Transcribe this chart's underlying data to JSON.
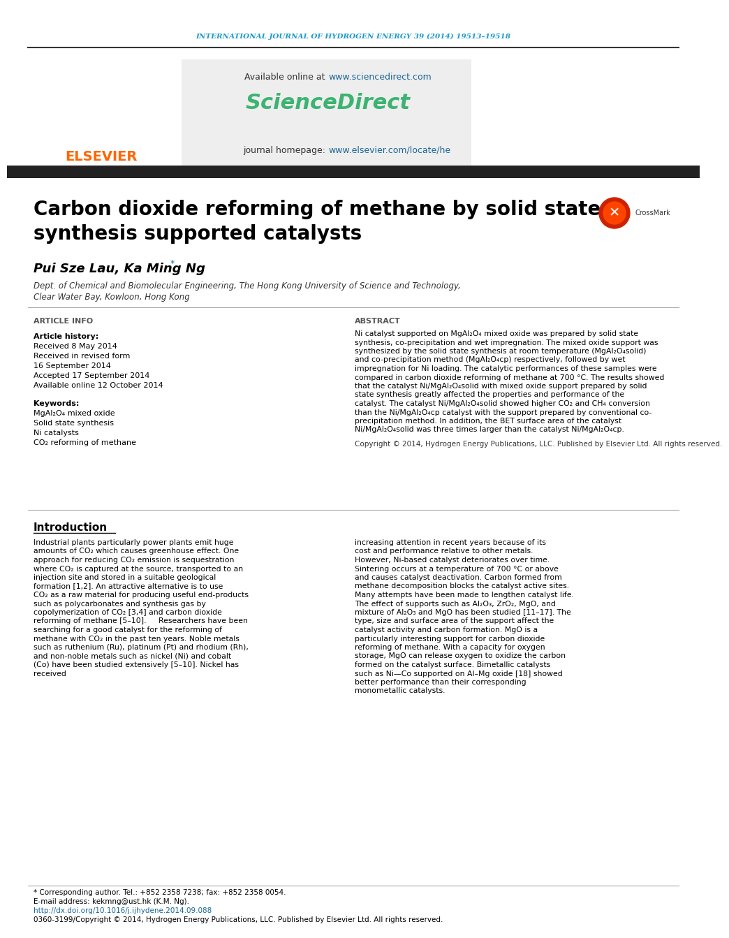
{
  "journal_header": "INTERNATIONAL JOURNAL OF HYDROGEN ENERGY 39 (2014) 19513–19518",
  "header_color": "#1a9ac9",
  "available_online": "Available online at ",
  "sciencedirect_url": "www.sciencedirect.com",
  "sciencedirect_label": "ScienceDirect",
  "sciencedirect_color": "#3cb371",
  "journal_homepage": "journal homepage: ",
  "journal_url": "www.elsevier.com/locate/he",
  "journal_url_color": "#1a6699",
  "title": "Carbon dioxide reforming of methane by solid state\nsynthesis supported catalysts",
  "authors": "Pui Sze Lau, Ka Ming Ng",
  "affiliation_line1": "Dept. of Chemical and Biomolecular Engineering, The Hong Kong University of Science and Technology,",
  "affiliation_line2": "Clear Water Bay, Kowloon, Hong Kong",
  "article_info_title": "ARTICLE INFO",
  "article_info_color": "#444444",
  "article_history": "Article history:",
  "received": "Received 8 May 2014",
  "received_revised": "Received in revised form",
  "revised_date": "16 September 2014",
  "accepted": "Accepted 17 September 2014",
  "available": "Available online 12 October 2014",
  "keywords_title": "Keywords:",
  "keywords": [
    "MgAl₂O₄ mixed oxide",
    "Solid state synthesis",
    "Ni catalysts",
    "CO₂ reforming of methane"
  ],
  "abstract_title": "ABSTRACT",
  "abstract_text": "Ni catalyst supported on MgAl₂O₄ mixed oxide was prepared by solid state synthesis, co-precipitation and wet impregnation. The mixed oxide support was synthesized by the solid state synthesis at room temperature (MgAl₂O₄solid) and co-precipitation method (MgAl₂O₄cp) respectively, followed by wet impregnation for Ni loading. The catalytic performances of these samples were compared in carbon dioxide reforming of methane at 700 °C. The results showed that the catalyst Ni/MgAl₂O₄solid with mixed oxide support prepared by solid state synthesis greatly affected the properties and performance of the catalyst. The catalyst Ni/MgAl₂O₄solid showed higher CO₂ and CH₄ conversion than the Ni/MgAl₂O₄cp catalyst with the support prepared by conventional co-precipitation method. In addition, the BET surface area of the catalyst Ni/MgAl₂O₄solid was three times larger than the catalyst Ni/MgAl₂O₄cp.",
  "copyright_text": "Copyright © 2014, Hydrogen Energy Publications, LLC. Published by Elsevier Ltd. All rights reserved.",
  "intro_title": "Introduction",
  "intro_col1": "Industrial plants particularly power plants emit huge amounts of CO₂ which causes greenhouse effect. One approach for reducing CO₂ emission is sequestration where CO₂ is captured at the source, transported to an injection site and stored in a suitable geological formation [1,2]. An attractive alternative is to use CO₂ as a raw material for producing useful end-products such as polycarbonates and synthesis gas by copolymerization of CO₂ [3,4] and carbon dioxide reforming of methane [5–10].\n    Researchers have been searching for a good catalyst for the reforming of methane with CO₂ in the past ten years. Noble metals such as ruthenium (Ru), platinum (Pt) and rhodium (Rh), and non-noble metals such as nickel (Ni) and cobalt (Co) have been studied extensively [5–10]. Nickel has received",
  "intro_col2": "increasing attention in recent years because of its cost and performance relative to other metals.\n    However, Ni-based catalyst deteriorates over time. Sintering occurs at a temperature of 700 °C or above and causes catalyst deactivation. Carbon formed from methane decomposition blocks the catalyst active sites. Many attempts have been made to lengthen catalyst life. The effect of supports such as Al₂O₃, ZrO₂, MgO, and mixture of Al₂O₃ and MgO has been studied [11–17]. The type, size and surface area of the support affect the catalyst activity and carbon formation. MgO is a particularly interesting support for carbon dioxide reforming of methane. With a capacity for oxygen storage, MgO can release oxygen to oxidize the carbon formed on the catalyst surface. Bimetallic catalysts such as Ni—Co supported on Al–Mg oxide [18] showed better performance than their corresponding monometallic catalysts.",
  "footer_text1": "* Corresponding author. Tel.: +852 2358 7238; fax: +852 2358 0054.",
  "footer_text2": "E-mail address: kekmng@ust.hk (K.M. Ng).",
  "footer_url": "http://dx.doi.org/10.1016/j.ijhydene.2014.09.088",
  "footer_text3": "0360-3199/Copyright © 2014, Hydrogen Energy Publications, LLC. Published by Elsevier Ltd. All rights reserved.",
  "bg_color": "#ffffff",
  "text_color": "#000000",
  "separator_color": "#333333",
  "header_bg": "#f5f5f5",
  "elsevier_color": "#ff6600"
}
